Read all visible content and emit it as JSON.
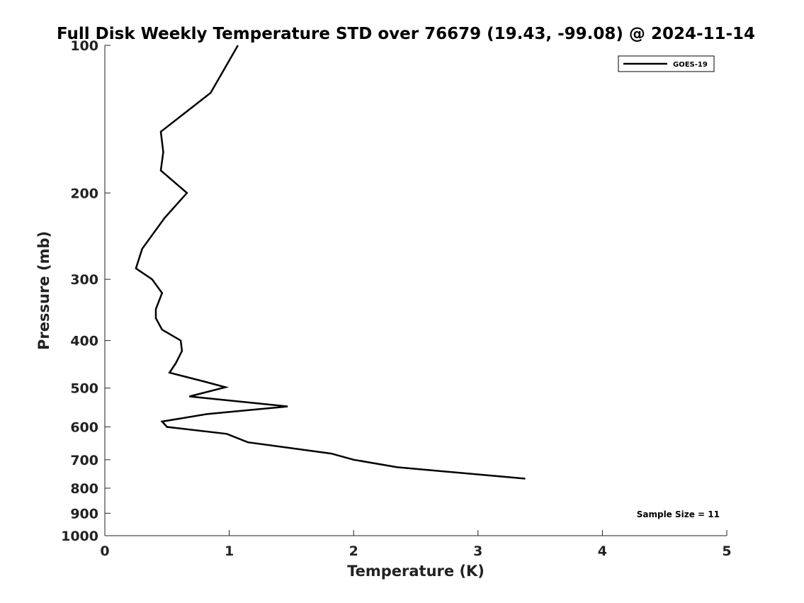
{
  "chart_data": {
    "type": "line",
    "title": "Full Disk Weekly Temperature STD over 76679 (19.43, -99.08) @ 2024-11-14",
    "xlabel": "Temperature (K)",
    "ylabel": "Pressure (mb)",
    "xlim": [
      0,
      5
    ],
    "ylim": [
      100,
      1000
    ],
    "y_scale": "log",
    "y_inverted": true,
    "x_ticks": [
      0,
      1,
      2,
      3,
      4,
      5
    ],
    "y_ticks": [
      100,
      200,
      300,
      400,
      500,
      600,
      700,
      800,
      900,
      1000
    ],
    "grid": false,
    "legend": "top-right",
    "annotation": "Sample Size = 11",
    "series": [
      {
        "name": "GOES-19",
        "color": "#000000",
        "points": [
          [
            1.07,
            100
          ],
          [
            0.85,
            125
          ],
          [
            0.45,
            150
          ],
          [
            0.47,
            165
          ],
          [
            0.45,
            180
          ],
          [
            0.66,
            200
          ],
          [
            0.48,
            225
          ],
          [
            0.3,
            260
          ],
          [
            0.25,
            285
          ],
          [
            0.38,
            300
          ],
          [
            0.46,
            320
          ],
          [
            0.41,
            345
          ],
          [
            0.41,
            360
          ],
          [
            0.46,
            380
          ],
          [
            0.61,
            400
          ],
          [
            0.62,
            420
          ],
          [
            0.57,
            445
          ],
          [
            0.52,
            465
          ],
          [
            0.8,
            485
          ],
          [
            0.97,
            498
          ],
          [
            0.68,
            520
          ],
          [
            1.47,
            545
          ],
          [
            0.82,
            565
          ],
          [
            0.46,
            585
          ],
          [
            0.5,
            600
          ],
          [
            0.98,
            620
          ],
          [
            1.15,
            645
          ],
          [
            1.82,
            680
          ],
          [
            2.0,
            700
          ],
          [
            2.35,
            725
          ],
          [
            3.38,
            765
          ]
        ]
      }
    ]
  }
}
